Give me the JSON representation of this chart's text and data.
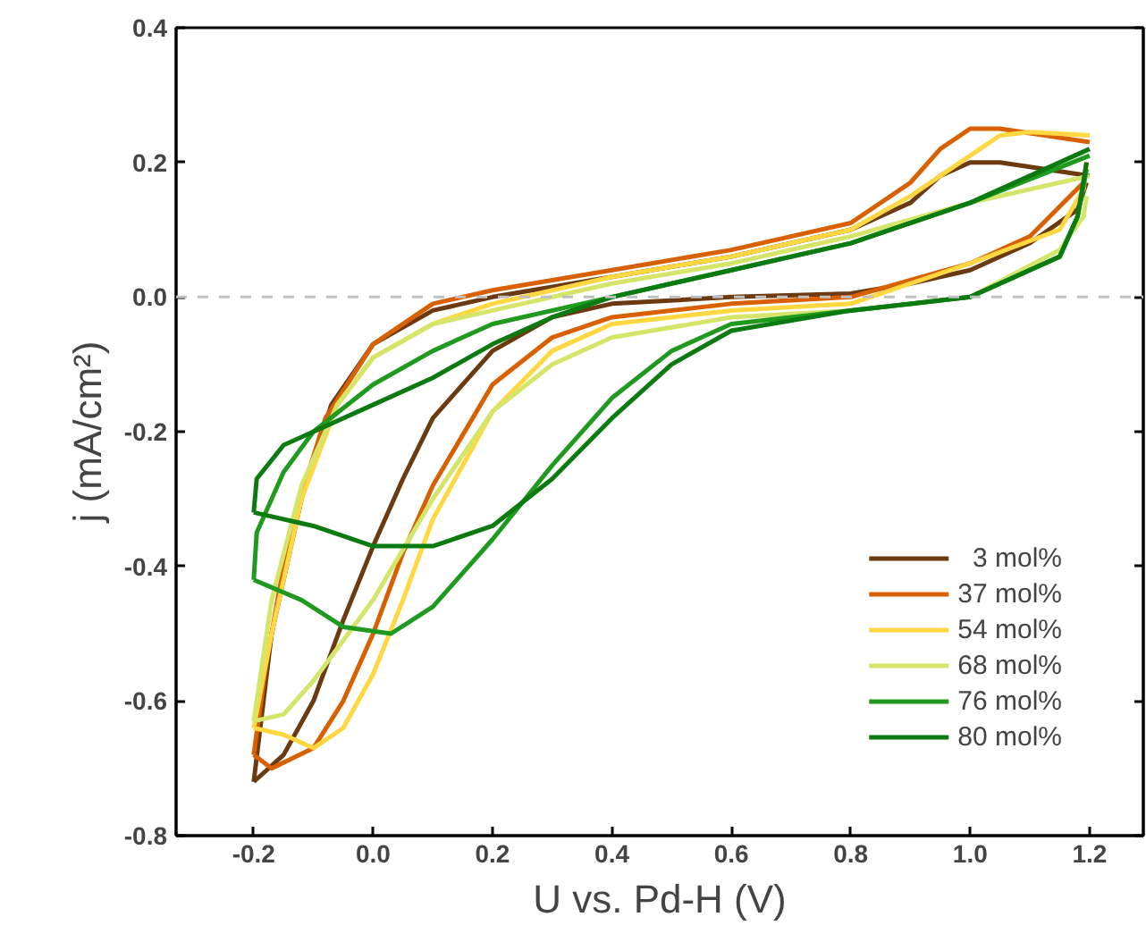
{
  "chart_data": {
    "type": "line",
    "xlabel": "U vs. Pd-H (V)",
    "ylabel": "j (mA/cm²)",
    "xlim": [
      -0.33,
      1.29
    ],
    "ylim": [
      -0.8,
      0.4
    ],
    "xticks": [
      {
        "value": -0.2,
        "label": "-0.2"
      },
      {
        "value": 0,
        "label": "0.0"
      },
      {
        "value": 0.2,
        "label": "0.2"
      },
      {
        "value": 0.4,
        "label": "0.4"
      },
      {
        "value": 0.6,
        "label": "0.6"
      },
      {
        "value": 0.8,
        "label": "0.8"
      },
      {
        "value": 1.0,
        "label": "1.0"
      },
      {
        "value": 1.2,
        "label": "1.2"
      }
    ],
    "yticks": [
      {
        "value": -0.8,
        "label": "-0.8"
      },
      {
        "value": -0.6,
        "label": "-0.6"
      },
      {
        "value": -0.4,
        "label": "-0.4"
      },
      {
        "value": -0.2,
        "label": "-0.2"
      },
      {
        "value": 0,
        "label": "0.0"
      },
      {
        "value": 0.2,
        "label": "0.2"
      },
      {
        "value": 0.4,
        "label": "0.4"
      }
    ],
    "grid": false,
    "legend": "bottom right",
    "line_style": "solid",
    "marker": "none",
    "ref_lines": [
      {
        "axis": "y",
        "value": 0,
        "color": "#c0c0c0",
        "line_style": "dashed"
      }
    ],
    "series": [
      {
        "name": "  3 mol%",
        "color": "#6b3a10",
        "x": [
          -0.2,
          -0.17,
          -0.12,
          -0.07,
          0,
          0.1,
          0.2,
          0.4,
          0.6,
          0.8,
          0.9,
          0.95,
          1.0,
          1.05,
          1.2
        ],
        "values": [
          -0.72,
          -0.5,
          -0.3,
          -0.16,
          -0.07,
          -0.02,
          0.0,
          0.03,
          0.06,
          0.1,
          0.14,
          0.18,
          0.2,
          0.2,
          0.18
        ]
      },
      {
        "color": "#6b3a10",
        "x": [
          -0.2,
          -0.15,
          -0.1,
          -0.05,
          0,
          0.05,
          0.1,
          0.2,
          0.3,
          0.4,
          0.6,
          0.8,
          0.9,
          1.0,
          1.1,
          1.18,
          1.195
        ],
        "values": [
          -0.72,
          -0.68,
          -0.6,
          -0.48,
          -0.37,
          -0.27,
          -0.18,
          -0.08,
          -0.03,
          -0.01,
          0.0,
          0.005,
          0.02,
          0.04,
          0.08,
          0.13,
          0.17
        ]
      },
      {
        "name": "37 mol%",
        "color": "#d96000",
        "x": [
          -0.2,
          -0.18,
          -0.14,
          -0.08,
          0,
          0.1,
          0.2,
          0.4,
          0.6,
          0.8,
          0.9,
          0.95,
          1.0,
          1.05,
          1.2
        ],
        "values": [
          -0.68,
          -0.55,
          -0.35,
          -0.18,
          -0.07,
          -0.01,
          0.01,
          0.04,
          0.07,
          0.11,
          0.17,
          0.22,
          0.25,
          0.25,
          0.23
        ]
      },
      {
        "color": "#d96000",
        "x": [
          -0.2,
          -0.17,
          -0.1,
          -0.05,
          0,
          0.05,
          0.1,
          0.2,
          0.3,
          0.4,
          0.6,
          0.8,
          1.0,
          1.1,
          1.19,
          1.195
        ],
        "values": [
          -0.68,
          -0.7,
          -0.67,
          -0.6,
          -0.5,
          -0.38,
          -0.28,
          -0.13,
          -0.06,
          -0.03,
          -0.01,
          0.0,
          0.05,
          0.09,
          0.17,
          0.2
        ]
      },
      {
        "name": "54 mol%",
        "color": "#ffd740",
        "x": [
          -0.2,
          -0.17,
          -0.12,
          -0.06,
          0,
          0.1,
          0.2,
          0.4,
          0.6,
          0.8,
          0.9,
          1.0,
          1.05,
          1.1,
          1.2
        ],
        "values": [
          -0.64,
          -0.5,
          -0.3,
          -0.16,
          -0.09,
          -0.04,
          -0.01,
          0.03,
          0.06,
          0.1,
          0.15,
          0.21,
          0.24,
          0.245,
          0.24
        ]
      },
      {
        "color": "#ffd740",
        "x": [
          -0.2,
          -0.15,
          -0.1,
          -0.05,
          0,
          0.05,
          0.1,
          0.2,
          0.3,
          0.4,
          0.6,
          0.8,
          1.0,
          1.15,
          1.19,
          1.195
        ],
        "values": [
          -0.64,
          -0.65,
          -0.67,
          -0.64,
          -0.56,
          -0.45,
          -0.33,
          -0.17,
          -0.08,
          -0.04,
          -0.02,
          -0.01,
          0.05,
          0.1,
          0.16,
          0.2
        ]
      },
      {
        "name": "68 mol%",
        "color": "#d4e56a",
        "x": [
          -0.2,
          -0.17,
          -0.12,
          -0.06,
          0,
          0.1,
          0.2,
          0.4,
          0.6,
          0.8,
          1.0,
          1.2
        ],
        "values": [
          -0.63,
          -0.45,
          -0.28,
          -0.16,
          -0.09,
          -0.04,
          -0.02,
          0.02,
          0.05,
          0.09,
          0.14,
          0.18
        ]
      },
      {
        "color": "#d4e56a",
        "x": [
          -0.2,
          -0.15,
          -0.1,
          0,
          0.1,
          0.2,
          0.3,
          0.4,
          0.6,
          0.8,
          1.0,
          1.15,
          1.19,
          1.195
        ],
        "values": [
          -0.63,
          -0.62,
          -0.57,
          -0.45,
          -0.3,
          -0.17,
          -0.1,
          -0.06,
          -0.03,
          -0.02,
          0.0,
          0.07,
          0.12,
          0.15
        ]
      },
      {
        "name": "76 mol%",
        "color": "#1f9a1f",
        "x": [
          -0.2,
          -0.195,
          -0.15,
          -0.1,
          0,
          0.1,
          0.2,
          0.4,
          0.6,
          0.8,
          1.0,
          1.2
        ],
        "values": [
          -0.42,
          -0.35,
          -0.26,
          -0.2,
          -0.13,
          -0.08,
          -0.04,
          0.0,
          0.04,
          0.08,
          0.14,
          0.21
        ]
      },
      {
        "color": "#1f9a1f",
        "x": [
          -0.2,
          -0.12,
          -0.05,
          0.03,
          0.1,
          0.2,
          0.3,
          0.4,
          0.5,
          0.6,
          0.8,
          1.0,
          1.15,
          1.18,
          1.195
        ],
        "values": [
          -0.42,
          -0.45,
          -0.49,
          -0.5,
          -0.46,
          -0.36,
          -0.25,
          -0.15,
          -0.08,
          -0.04,
          -0.02,
          0.0,
          0.06,
          0.12,
          0.19
        ]
      },
      {
        "name": "80 mol%",
        "color": "#0b7a10",
        "x": [
          -0.2,
          -0.195,
          -0.15,
          -0.1,
          0,
          0.1,
          0.2,
          0.3,
          0.4,
          0.6,
          0.8,
          1.0,
          1.2
        ],
        "values": [
          -0.32,
          -0.27,
          -0.22,
          -0.2,
          -0.16,
          -0.12,
          -0.07,
          -0.03,
          0.0,
          0.04,
          0.08,
          0.14,
          0.22
        ]
      },
      {
        "color": "#0b7a10",
        "x": [
          -0.2,
          -0.1,
          0,
          0.1,
          0.2,
          0.3,
          0.4,
          0.5,
          0.6,
          0.8,
          1.0,
          1.15,
          1.18,
          1.195
        ],
        "values": [
          -0.32,
          -0.34,
          -0.37,
          -0.37,
          -0.34,
          -0.27,
          -0.18,
          -0.1,
          -0.05,
          -0.02,
          0.0,
          0.06,
          0.12,
          0.2
        ]
      }
    ]
  }
}
